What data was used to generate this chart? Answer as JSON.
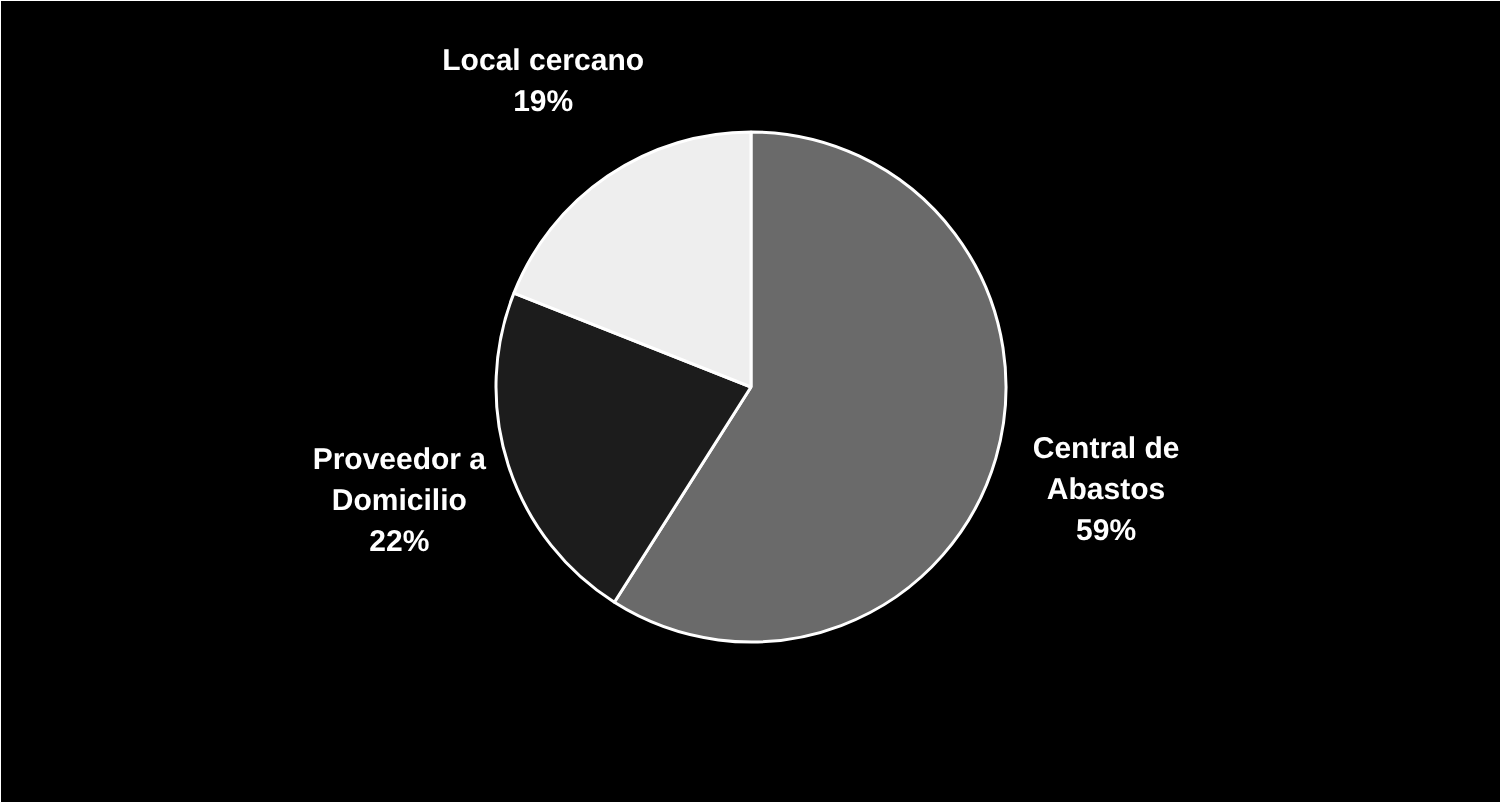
{
  "chart_data": {
    "type": "pie",
    "categories": [
      "Central de\nAbastos",
      "Proveedor a\nDomicilio",
      "Local cercano"
    ],
    "values": [
      59,
      22,
      19
    ],
    "value_labels": [
      "59%",
      "22%",
      "19%"
    ],
    "colors": [
      "#6a6a6a",
      "#1c1c1c",
      "#eeeeee"
    ],
    "legend": false
  }
}
